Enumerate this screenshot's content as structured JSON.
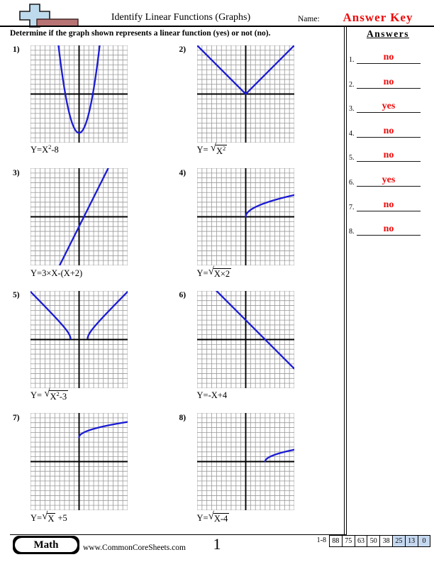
{
  "header": {
    "title": "Identify Linear Functions (Graphs)",
    "name_label": "Name:",
    "answer_key": "Answer Key"
  },
  "instruction": "Determine if the graph shown represents a linear function (yes) or not (no).",
  "answers_panel": {
    "heading": "Answers",
    "items": [
      {
        "num": "1.",
        "value": "no"
      },
      {
        "num": "2.",
        "value": "no"
      },
      {
        "num": "3.",
        "value": "yes"
      },
      {
        "num": "4.",
        "value": "no"
      },
      {
        "num": "5.",
        "value": "no"
      },
      {
        "num": "6.",
        "value": "yes"
      },
      {
        "num": "7.",
        "value": "no"
      },
      {
        "num": "8.",
        "value": "no"
      }
    ]
  },
  "problems": [
    {
      "num": "1)",
      "answer": "no",
      "eq": [
        {
          "t": "txt",
          "v": "Y=X"
        },
        {
          "t": "sup",
          "v": "2"
        },
        {
          "t": "txt",
          "v": "-8"
        }
      ],
      "curve": {
        "f": "quad",
        "a": 1,
        "b": 0,
        "c": -8
      }
    },
    {
      "num": "2)",
      "answer": "no",
      "eq": [
        {
          "t": "txt",
          "v": "Y= "
        },
        {
          "t": "rad",
          "under": [
            {
              "t": "txt",
              "v": "X"
            },
            {
              "t": "sup",
              "v": "2"
            }
          ]
        }
      ],
      "curve": {
        "f": "abs"
      }
    },
    {
      "num": "3)",
      "answer": "yes",
      "eq": [
        {
          "t": "txt",
          "v": "Y=3×X-(X+2)"
        }
      ],
      "curve": {
        "f": "line",
        "m": 2,
        "b": -2
      }
    },
    {
      "num": "4)",
      "answer": "no",
      "eq": [
        {
          "t": "txt",
          "v": "Y="
        },
        {
          "t": "rad",
          "under": [
            {
              "t": "txt",
              "v": "X×2"
            }
          ]
        }
      ],
      "curve": {
        "f": "sqrt",
        "a": 2,
        "h": 0,
        "k": 0
      }
    },
    {
      "num": "5)",
      "answer": "no",
      "eq": [
        {
          "t": "txt",
          "v": "Y= "
        },
        {
          "t": "rad",
          "under": [
            {
              "t": "txt",
              "v": "X"
            },
            {
              "t": "sup",
              "v": "2"
            },
            {
              "t": "txt",
              "v": "-3"
            }
          ]
        }
      ],
      "curve": {
        "f": "sqrtquad",
        "c": -3
      }
    },
    {
      "num": "6)",
      "answer": "yes",
      "eq": [
        {
          "t": "txt",
          "v": "Y=-X+4"
        }
      ],
      "curve": {
        "f": "line",
        "m": -1,
        "b": 4
      }
    },
    {
      "num": "7)",
      "answer": "no",
      "eq": [
        {
          "t": "txt",
          "v": "Y="
        },
        {
          "t": "rad",
          "under": [
            {
              "t": "txt",
              "v": "X"
            }
          ]
        },
        {
          "t": "txt",
          "v": " +5"
        }
      ],
      "curve": {
        "f": "sqrt",
        "a": 1,
        "h": 0,
        "k": 5
      }
    },
    {
      "num": "8)",
      "answer": "no",
      "eq": [
        {
          "t": "txt",
          "v": "Y="
        },
        {
          "t": "rad",
          "under": [
            {
              "t": "txt",
              "v": "X-4"
            }
          ]
        }
      ],
      "curve": {
        "f": "sqrt",
        "a": 1,
        "h": 4,
        "k": 0
      }
    }
  ],
  "chart_data": [
    {
      "index": 1,
      "type": "line",
      "equation": "Y=X²-8",
      "plotted_function": "y = x² - 8",
      "shape": "upward parabola, vertex (0,-8), x-intercepts ±2.83",
      "x_view": [
        -10,
        10
      ],
      "y_view": [
        -10,
        10
      ],
      "grid_cells": 20,
      "is_linear": false,
      "answer": "no"
    },
    {
      "index": 2,
      "type": "line",
      "equation": "Y=√(X²)",
      "plotted_function": "y = |x|",
      "shape": "V shape, vertex (0,0), slopes ±1 reaching top corners",
      "x_view": [
        -10,
        10
      ],
      "y_view": [
        -10,
        10
      ],
      "grid_cells": 20,
      "is_linear": false,
      "answer": "no"
    },
    {
      "index": 3,
      "type": "line",
      "equation": "Y=3×X-(X+2)",
      "plotted_function": "y = 2x - 2",
      "shape": "straight line, slope 2, y-intercept -2, x-intercept 1",
      "x_view": [
        -10,
        10
      ],
      "y_view": [
        -10,
        10
      ],
      "grid_cells": 20,
      "is_linear": true,
      "answer": "yes"
    },
    {
      "index": 4,
      "type": "line",
      "equation": "Y=√(X×2)",
      "plotted_function": "y = √(2x)",
      "shape": "square-root curve from origin through (2,2) and (8,4)",
      "x_view": [
        -10,
        10
      ],
      "y_view": [
        -10,
        10
      ],
      "grid_cells": 20,
      "is_linear": false,
      "answer": "no"
    },
    {
      "index": 5,
      "type": "line",
      "equation": "Y=√(X²-3)",
      "plotted_function": "y = √(x² - 3)",
      "shape": "two branches starting at (±1.73, 0) rising toward |x|",
      "x_view": [
        -10,
        10
      ],
      "y_view": [
        -10,
        10
      ],
      "grid_cells": 20,
      "is_linear": false,
      "answer": "no"
    },
    {
      "index": 6,
      "type": "line",
      "equation": "Y=-X+4",
      "plotted_function": "y = -x + 4",
      "shape": "straight line, slope -1, y-intercept 4, x-intercept 4",
      "x_view": [
        -10,
        10
      ],
      "y_view": [
        -10,
        10
      ],
      "grid_cells": 20,
      "is_linear": true,
      "answer": "yes"
    },
    {
      "index": 7,
      "type": "line",
      "equation": "Y=√X +5",
      "plotted_function": "y = √x + 5",
      "shape": "square-root curve starting at (0,5), through (9,8)",
      "x_view": [
        -10,
        10
      ],
      "y_view": [
        -10,
        10
      ],
      "grid_cells": 20,
      "is_linear": false,
      "answer": "no"
    },
    {
      "index": 8,
      "type": "line",
      "equation": "Y=√(X-4)",
      "plotted_function": "y = √(x - 4)",
      "shape": "square-root curve starting at (4,0), through (8,2)",
      "x_view": [
        -10,
        10
      ],
      "y_view": [
        -10,
        10
      ],
      "grid_cells": 20,
      "is_linear": false,
      "answer": "no"
    }
  ],
  "footer": {
    "subject": "Math",
    "website": "www.CommonCoreSheets.com",
    "page": "1",
    "range_label": "1-8",
    "scores": [
      {
        "value": "88",
        "highlighted": false
      },
      {
        "value": "75",
        "highlighted": false
      },
      {
        "value": "63",
        "highlighted": false
      },
      {
        "value": "50",
        "highlighted": false
      },
      {
        "value": "38",
        "highlighted": false
      },
      {
        "value": "25",
        "highlighted": true
      },
      {
        "value": "13",
        "highlighted": true
      },
      {
        "value": "0",
        "highlighted": true
      }
    ]
  },
  "colors": {
    "answer_red": "#ee0a0a",
    "curve_blue": "#1b1bd4",
    "grid_gray": "#9a9a9a",
    "axis_black": "#000000",
    "score_highlight": "#c5d8f0",
    "logo_plus_blue": "#bedbed",
    "logo_bar_rose": "#b87474"
  }
}
